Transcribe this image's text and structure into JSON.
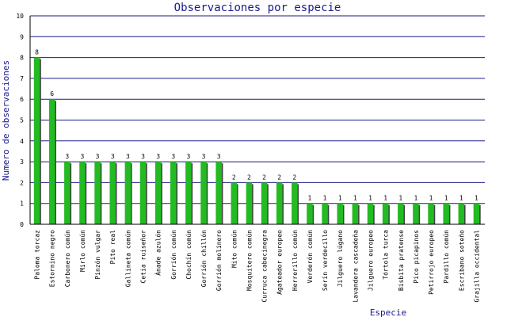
{
  "chart_data": {
    "type": "bar",
    "title": "Observaciones por especie",
    "xlabel": "Especie",
    "ylabel": "Numero de observaciones",
    "ylim": [
      0,
      10
    ],
    "yticks": [
      0,
      1,
      2,
      3,
      4,
      5,
      6,
      7,
      8,
      9,
      10
    ],
    "grid": true,
    "categories": [
      "Paloma torcaz",
      "Estornino negro",
      "Carbonero común",
      "Mirlo común",
      "Pinzón vulgar",
      "Pito real",
      "Gallineta común",
      "Cetia ruiseñor",
      "Ánade azulón",
      "Gorrión común",
      "Chochín común",
      "Gorrión chillón",
      "Gorrión molinero",
      "Mito común",
      "Mosquitero común",
      "Curruca cabecinegra",
      "Agateador europeo",
      "Herrerillo común",
      "Verderón común",
      "Serín verdecillo",
      "Jilguero lúgano",
      "Lavandera cascadeña",
      "Jilguero europeo",
      "Tórtola turca",
      "Bisbita pratense",
      "Pico picapinos",
      "Petirrojo europeo",
      "Pardillo común",
      "Escribano soteño",
      "Grajilla occidental"
    ],
    "values": [
      8,
      6,
      3,
      3,
      3,
      3,
      3,
      3,
      3,
      3,
      3,
      3,
      3,
      2,
      2,
      2,
      2,
      2,
      1,
      1,
      1,
      1,
      1,
      1,
      1,
      1,
      1,
      1,
      1,
      1
    ],
    "colors": {
      "bar": "#22bb22",
      "shadow": "#404040",
      "grid": "#1a1a8c",
      "axis": "#000000",
      "text": "#1a1a8c"
    }
  }
}
